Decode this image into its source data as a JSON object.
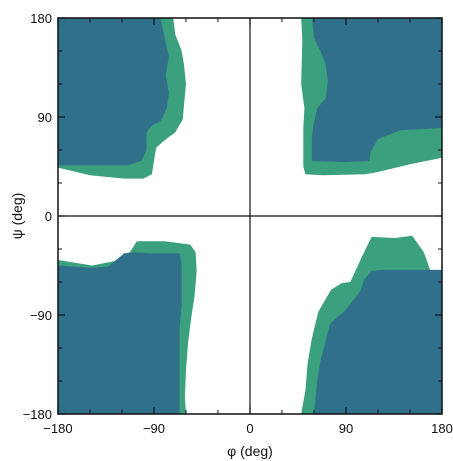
{
  "chart_data": {
    "type": "area",
    "title": "",
    "xlabel": "φ (deg)",
    "ylabel": "ψ (deg)",
    "xlim": [
      -180,
      180
    ],
    "ylim": [
      -180,
      180
    ],
    "xticks": [
      "−180",
      "−90",
      "0",
      "90",
      "180"
    ],
    "yticks": [
      "−180",
      "−90",
      "0",
      "90",
      "180"
    ],
    "grid": false,
    "reference_lines": [
      {
        "axis": "x",
        "value": 0
      },
      {
        "axis": "y",
        "value": 0
      }
    ],
    "colors": {
      "inner_region": "#31708b",
      "outer_region": "#3aa07e",
      "background": "#ffffff",
      "axes": "#111111"
    },
    "series": [
      {
        "role": "outer",
        "regions": [
          [
            [
              -180,
              180
            ],
            [
              -72,
              180
            ],
            [
              -70,
              165
            ],
            [
              -64,
              150
            ],
            [
              -62,
              138
            ],
            [
              -60,
              120
            ],
            [
              -62,
              100
            ],
            [
              -63,
              88
            ],
            [
              -70,
              76
            ],
            [
              -80,
              69
            ],
            [
              -88,
              62
            ],
            [
              -90,
              50
            ],
            [
              -92,
              38
            ],
            [
              -100,
              34
            ],
            [
              -118,
              34
            ],
            [
              -150,
              37
            ],
            [
              -180,
              44
            ]
          ],
          [
            [
              -180,
              -40
            ],
            [
              -148,
              -45
            ],
            [
              -122,
              -40
            ],
            [
              -112,
              -32
            ],
            [
              -106,
              -23
            ],
            [
              -80,
              -23
            ],
            [
              -56,
              -26
            ],
            [
              -51,
              -33
            ],
            [
              -50,
              -50
            ],
            [
              -52,
              -73
            ],
            [
              -55,
              -92
            ],
            [
              -58,
              -115
            ],
            [
              -60,
              -140
            ],
            [
              -61,
              -165
            ],
            [
              -60,
              -180
            ],
            [
              -180,
              -180
            ]
          ],
          [
            [
              48,
              180
            ],
            [
              49,
              160
            ],
            [
              48,
              120
            ],
            [
              51,
              98
            ],
            [
              50,
              80
            ],
            [
              50,
              45
            ],
            [
              52,
              38
            ],
            [
              68,
              37
            ],
            [
              108,
              38
            ],
            [
              120,
              40
            ],
            [
              150,
              47
            ],
            [
              180,
              53
            ],
            [
              180,
              180
            ]
          ],
          [
            [
              48,
              -180
            ],
            [
              52,
              -158
            ],
            [
              54,
              -134
            ],
            [
              58,
              -111
            ],
            [
              64,
              -87
            ],
            [
              76,
              -67
            ],
            [
              86,
              -61
            ],
            [
              94,
              -60
            ],
            [
              104,
              -39
            ],
            [
              114,
              -19
            ],
            [
              136,
              -20
            ],
            [
              152,
              -18
            ],
            [
              163,
              -33
            ],
            [
              170,
              -52
            ],
            [
              180,
              -60
            ],
            [
              180,
              -180
            ]
          ]
        ]
      },
      {
        "role": "inner",
        "regions": [
          [
            [
              -180,
              180
            ],
            [
              -84,
              180
            ],
            [
              -80,
              162
            ],
            [
              -76,
              145
            ],
            [
              -79,
              128
            ],
            [
              -76,
              112
            ],
            [
              -78,
              98
            ],
            [
              -84,
              86
            ],
            [
              -92,
              82
            ],
            [
              -97,
              76
            ],
            [
              -97,
              60
            ],
            [
              -102,
              50
            ],
            [
              -115,
              46
            ],
            [
              -150,
              46
            ],
            [
              -180,
              46
            ]
          ],
          [
            [
              -180,
              -45
            ],
            [
              -150,
              -47
            ],
            [
              -133,
              -46
            ],
            [
              -118,
              -34
            ],
            [
              -108,
              -33
            ],
            [
              -92,
              -34
            ],
            [
              -66,
              -34
            ],
            [
              -64,
              -45
            ],
            [
              -64,
              -60
            ],
            [
              -64,
              -80
            ],
            [
              -66,
              -102
            ],
            [
              -66,
              -150
            ],
            [
              -66,
              -180
            ],
            [
              -180,
              -180
            ]
          ],
          [
            [
              58,
              180
            ],
            [
              60,
              162
            ],
            [
              66,
              150
            ],
            [
              71,
              138
            ],
            [
              73,
              123
            ],
            [
              71,
              107
            ],
            [
              63,
              98
            ],
            [
              59,
              80
            ],
            [
              58,
              70
            ],
            [
              58,
              50
            ],
            [
              90,
              49
            ],
            [
              112,
              50
            ],
            [
              113,
              58
            ],
            [
              120,
              70
            ],
            [
              141,
              78
            ],
            [
              180,
              80
            ],
            [
              180,
              180
            ]
          ],
          [
            [
              60,
              -180
            ],
            [
              63,
              -150
            ],
            [
              66,
              -132
            ],
            [
              70,
              -117
            ],
            [
              75,
              -98
            ],
            [
              90,
              -85
            ],
            [
              103,
              -69
            ],
            [
              107,
              -58
            ],
            [
              114,
              -50
            ],
            [
              124,
              -49
            ],
            [
              180,
              -49
            ],
            [
              180,
              -180
            ]
          ]
        ]
      }
    ]
  }
}
